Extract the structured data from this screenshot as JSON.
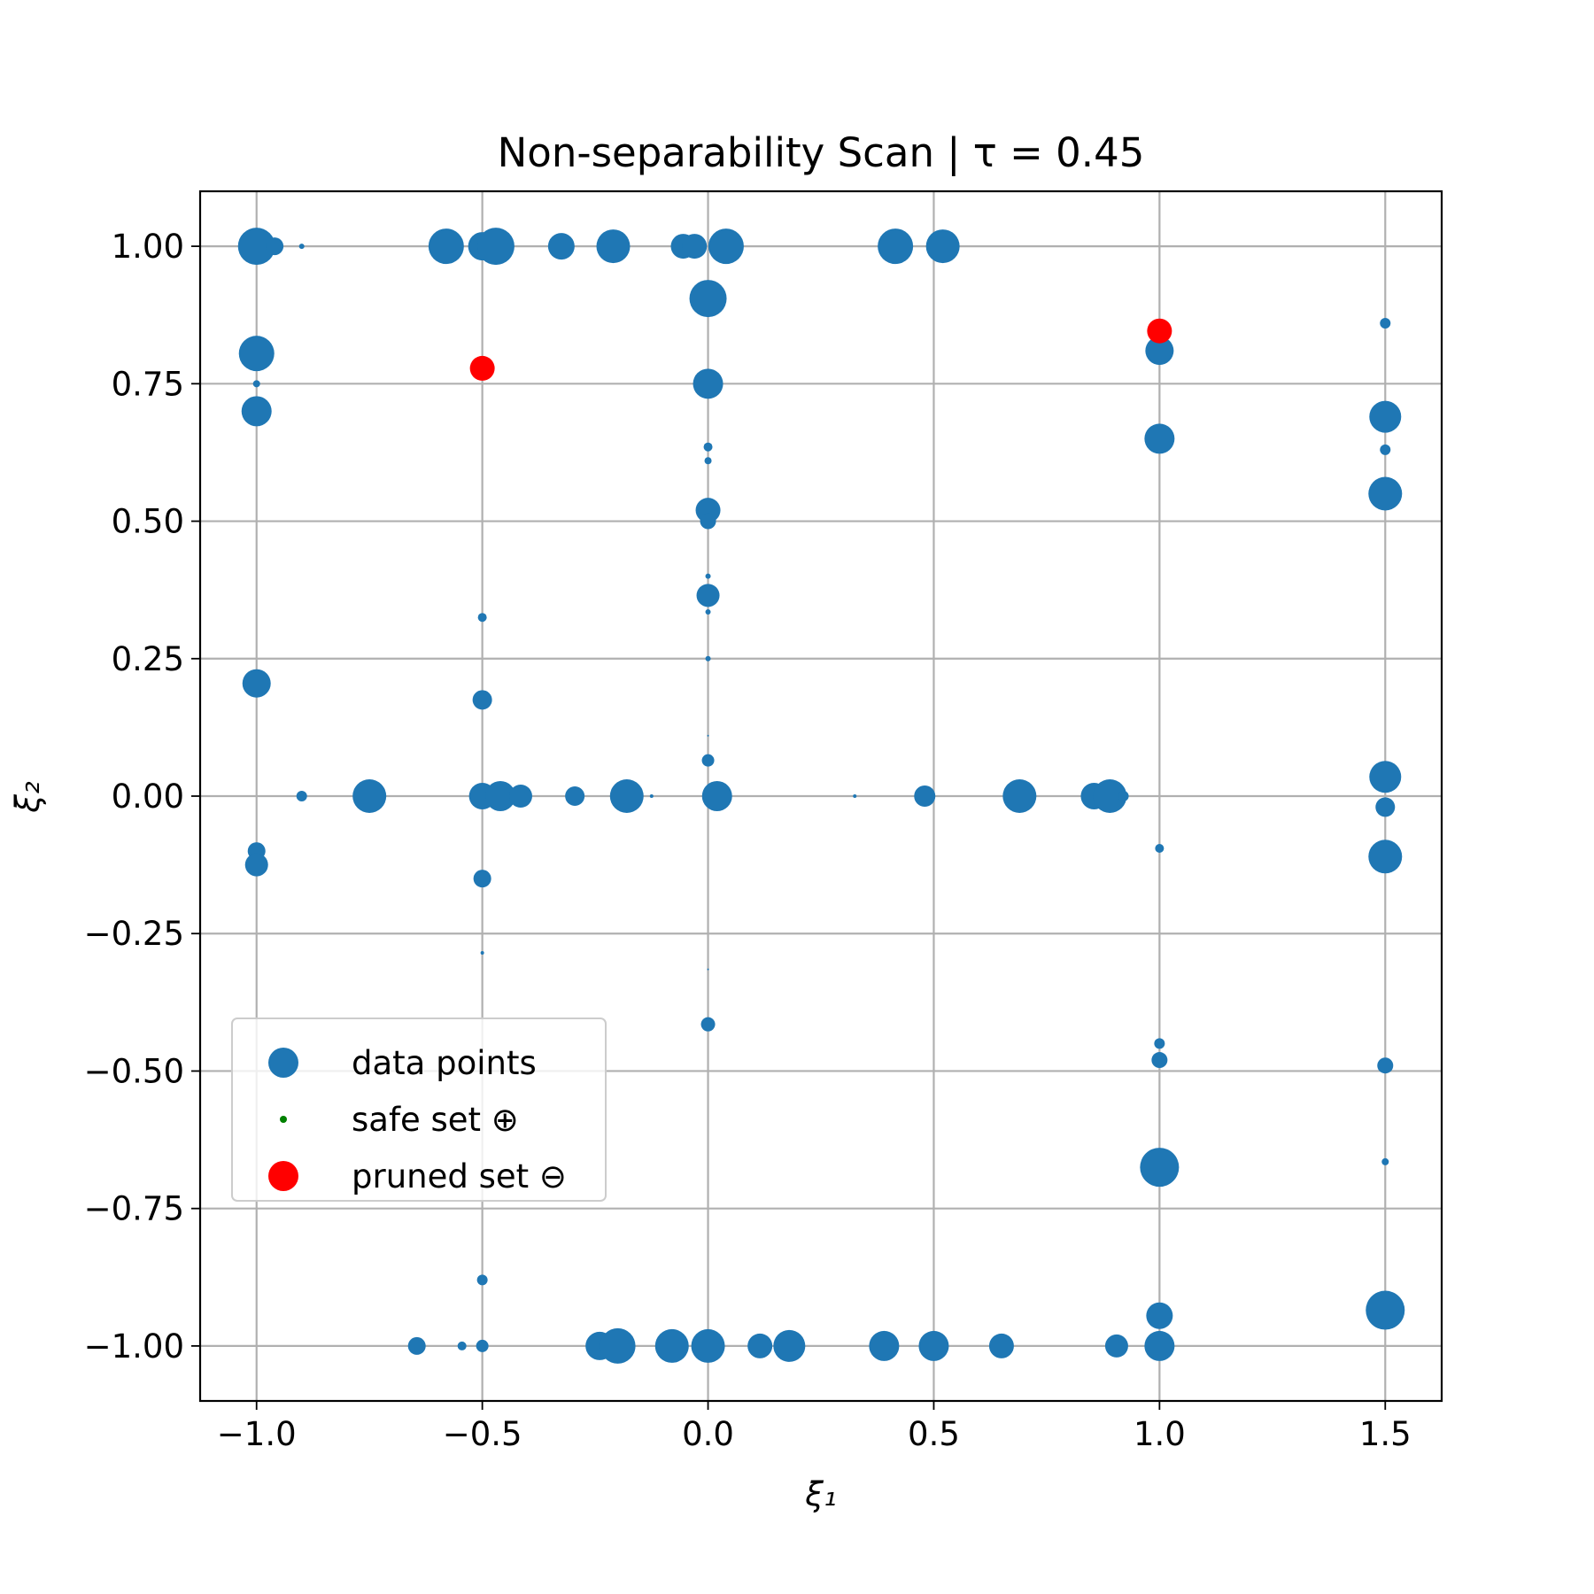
{
  "chart_data": {
    "type": "scatter",
    "title": "Non-separability Scan | τ = 0.45",
    "xlabel": "ξ₁",
    "ylabel": "ξ₂",
    "xlim": [
      -1.125,
      1.625
    ],
    "ylim": [
      -1.1,
      1.1
    ],
    "xticks": [
      -1.0,
      -0.5,
      0.0,
      0.5,
      1.0,
      1.5
    ],
    "xtick_labels": [
      "−1.0",
      "−0.5",
      "0.0",
      "0.5",
      "1.0",
      "1.5"
    ],
    "yticks": [
      -1.0,
      -0.75,
      -0.5,
      -0.25,
      0.0,
      0.25,
      0.5,
      0.75,
      1.0
    ],
    "ytick_labels": [
      "−1.00",
      "−0.75",
      "−0.50",
      "−0.25",
      "0.00",
      "0.25",
      "0.50",
      "0.75",
      "1.00"
    ],
    "grid": true,
    "legend_position": "lower-left",
    "series": [
      {
        "name": "data points",
        "color": "#1f77b4",
        "points": [
          [
            -1.0,
            1.0,
            21
          ],
          [
            -0.96,
            1.0,
            10
          ],
          [
            -0.9,
            1.0,
            3
          ],
          [
            -0.58,
            1.0,
            20
          ],
          [
            -0.5,
            1.0,
            16
          ],
          [
            -0.47,
            1.0,
            21
          ],
          [
            -0.325,
            1.0,
            15
          ],
          [
            -0.21,
            1.0,
            19
          ],
          [
            -0.055,
            1.0,
            14
          ],
          [
            -0.03,
            1.0,
            14
          ],
          [
            0.04,
            1.0,
            20
          ],
          [
            0.415,
            1.0,
            20
          ],
          [
            0.52,
            1.0,
            19
          ],
          [
            0.0,
            0.905,
            21
          ],
          [
            -1.0,
            0.805,
            20
          ],
          [
            -1.0,
            0.75,
            4
          ],
          [
            0.0,
            0.75,
            17
          ],
          [
            1.0,
            0.81,
            16
          ],
          [
            1.5,
            0.86,
            6
          ],
          [
            -1.0,
            0.7,
            17
          ],
          [
            1.5,
            0.69,
            18
          ],
          [
            1.0,
            0.65,
            17
          ],
          [
            0.0,
            0.635,
            5
          ],
          [
            1.5,
            0.63,
            6
          ],
          [
            0.0,
            0.61,
            4
          ],
          [
            1.5,
            0.55,
            19
          ],
          [
            0.0,
            0.52,
            14
          ],
          [
            0.0,
            0.5,
            9
          ],
          [
            0.0,
            0.4,
            3
          ],
          [
            0.0,
            0.365,
            13
          ],
          [
            0.0,
            0.335,
            3
          ],
          [
            -0.5,
            0.325,
            5
          ],
          [
            0.0,
            0.25,
            3
          ],
          [
            -1.0,
            0.205,
            16
          ],
          [
            -0.5,
            0.175,
            11
          ],
          [
            0.0,
            0.11,
            1
          ],
          [
            0.0,
            0.065,
            7
          ],
          [
            1.5,
            0.035,
            18
          ],
          [
            -0.9,
            0.0,
            6
          ],
          [
            -0.75,
            0.0,
            19
          ],
          [
            -0.5,
            0.0,
            15
          ],
          [
            -0.46,
            0.0,
            17
          ],
          [
            -0.415,
            0.0,
            13
          ],
          [
            -0.295,
            0.0,
            11
          ],
          [
            -0.18,
            0.0,
            19
          ],
          [
            -0.125,
            0.0,
            2
          ],
          [
            0.02,
            0.0,
            17
          ],
          [
            0.325,
            0.0,
            2
          ],
          [
            0.48,
            0.0,
            12
          ],
          [
            0.69,
            0.0,
            19
          ],
          [
            0.855,
            0.0,
            15
          ],
          [
            0.89,
            0.0,
            19
          ],
          [
            0.92,
            0.0,
            6
          ],
          [
            1.5,
            -0.02,
            11
          ],
          [
            1.0,
            -0.095,
            5
          ],
          [
            -1.0,
            -0.1,
            10
          ],
          [
            -1.0,
            -0.125,
            13
          ],
          [
            1.5,
            -0.11,
            19
          ],
          [
            -0.5,
            -0.15,
            10
          ],
          [
            -0.5,
            -0.285,
            2
          ],
          [
            0.0,
            -0.315,
            1
          ],
          [
            0.0,
            -0.415,
            8
          ],
          [
            1.0,
            -0.45,
            6
          ],
          [
            1.0,
            -0.48,
            9
          ],
          [
            1.5,
            -0.49,
            9
          ],
          [
            1.5,
            -0.665,
            4
          ],
          [
            1.0,
            -0.675,
            22
          ],
          [
            -0.5,
            -0.88,
            6
          ],
          [
            1.5,
            -0.935,
            22
          ],
          [
            1.0,
            -0.945,
            15
          ],
          [
            -0.645,
            -1.0,
            10
          ],
          [
            -0.545,
            -1.0,
            5
          ],
          [
            -0.5,
            -1.0,
            7
          ],
          [
            -0.24,
            -1.0,
            16
          ],
          [
            -0.2,
            -1.0,
            20
          ],
          [
            -0.08,
            -1.0,
            19
          ],
          [
            0.0,
            -1.0,
            19
          ],
          [
            0.115,
            -1.0,
            14
          ],
          [
            0.18,
            -1.0,
            18
          ],
          [
            0.39,
            -1.0,
            17
          ],
          [
            0.5,
            -1.0,
            17
          ],
          [
            0.65,
            -1.0,
            14
          ],
          [
            0.905,
            -1.0,
            13
          ],
          [
            1.0,
            -1.0,
            17
          ]
        ]
      },
      {
        "name": "safe set ⊕",
        "color": "#008000",
        "points": []
      },
      {
        "name": "pruned set ⊖",
        "color": "#ff0000",
        "points": [
          [
            -0.5,
            0.778,
            14
          ],
          [
            1.0,
            0.846,
            14
          ]
        ]
      }
    ],
    "legend": [
      {
        "label": "data points",
        "color": "#1f77b4",
        "marker": "large"
      },
      {
        "label": "safe set ⊕",
        "color": "#008000",
        "marker": "small"
      },
      {
        "label": "pruned set ⊖",
        "color": "#ff0000",
        "marker": "large"
      }
    ]
  }
}
